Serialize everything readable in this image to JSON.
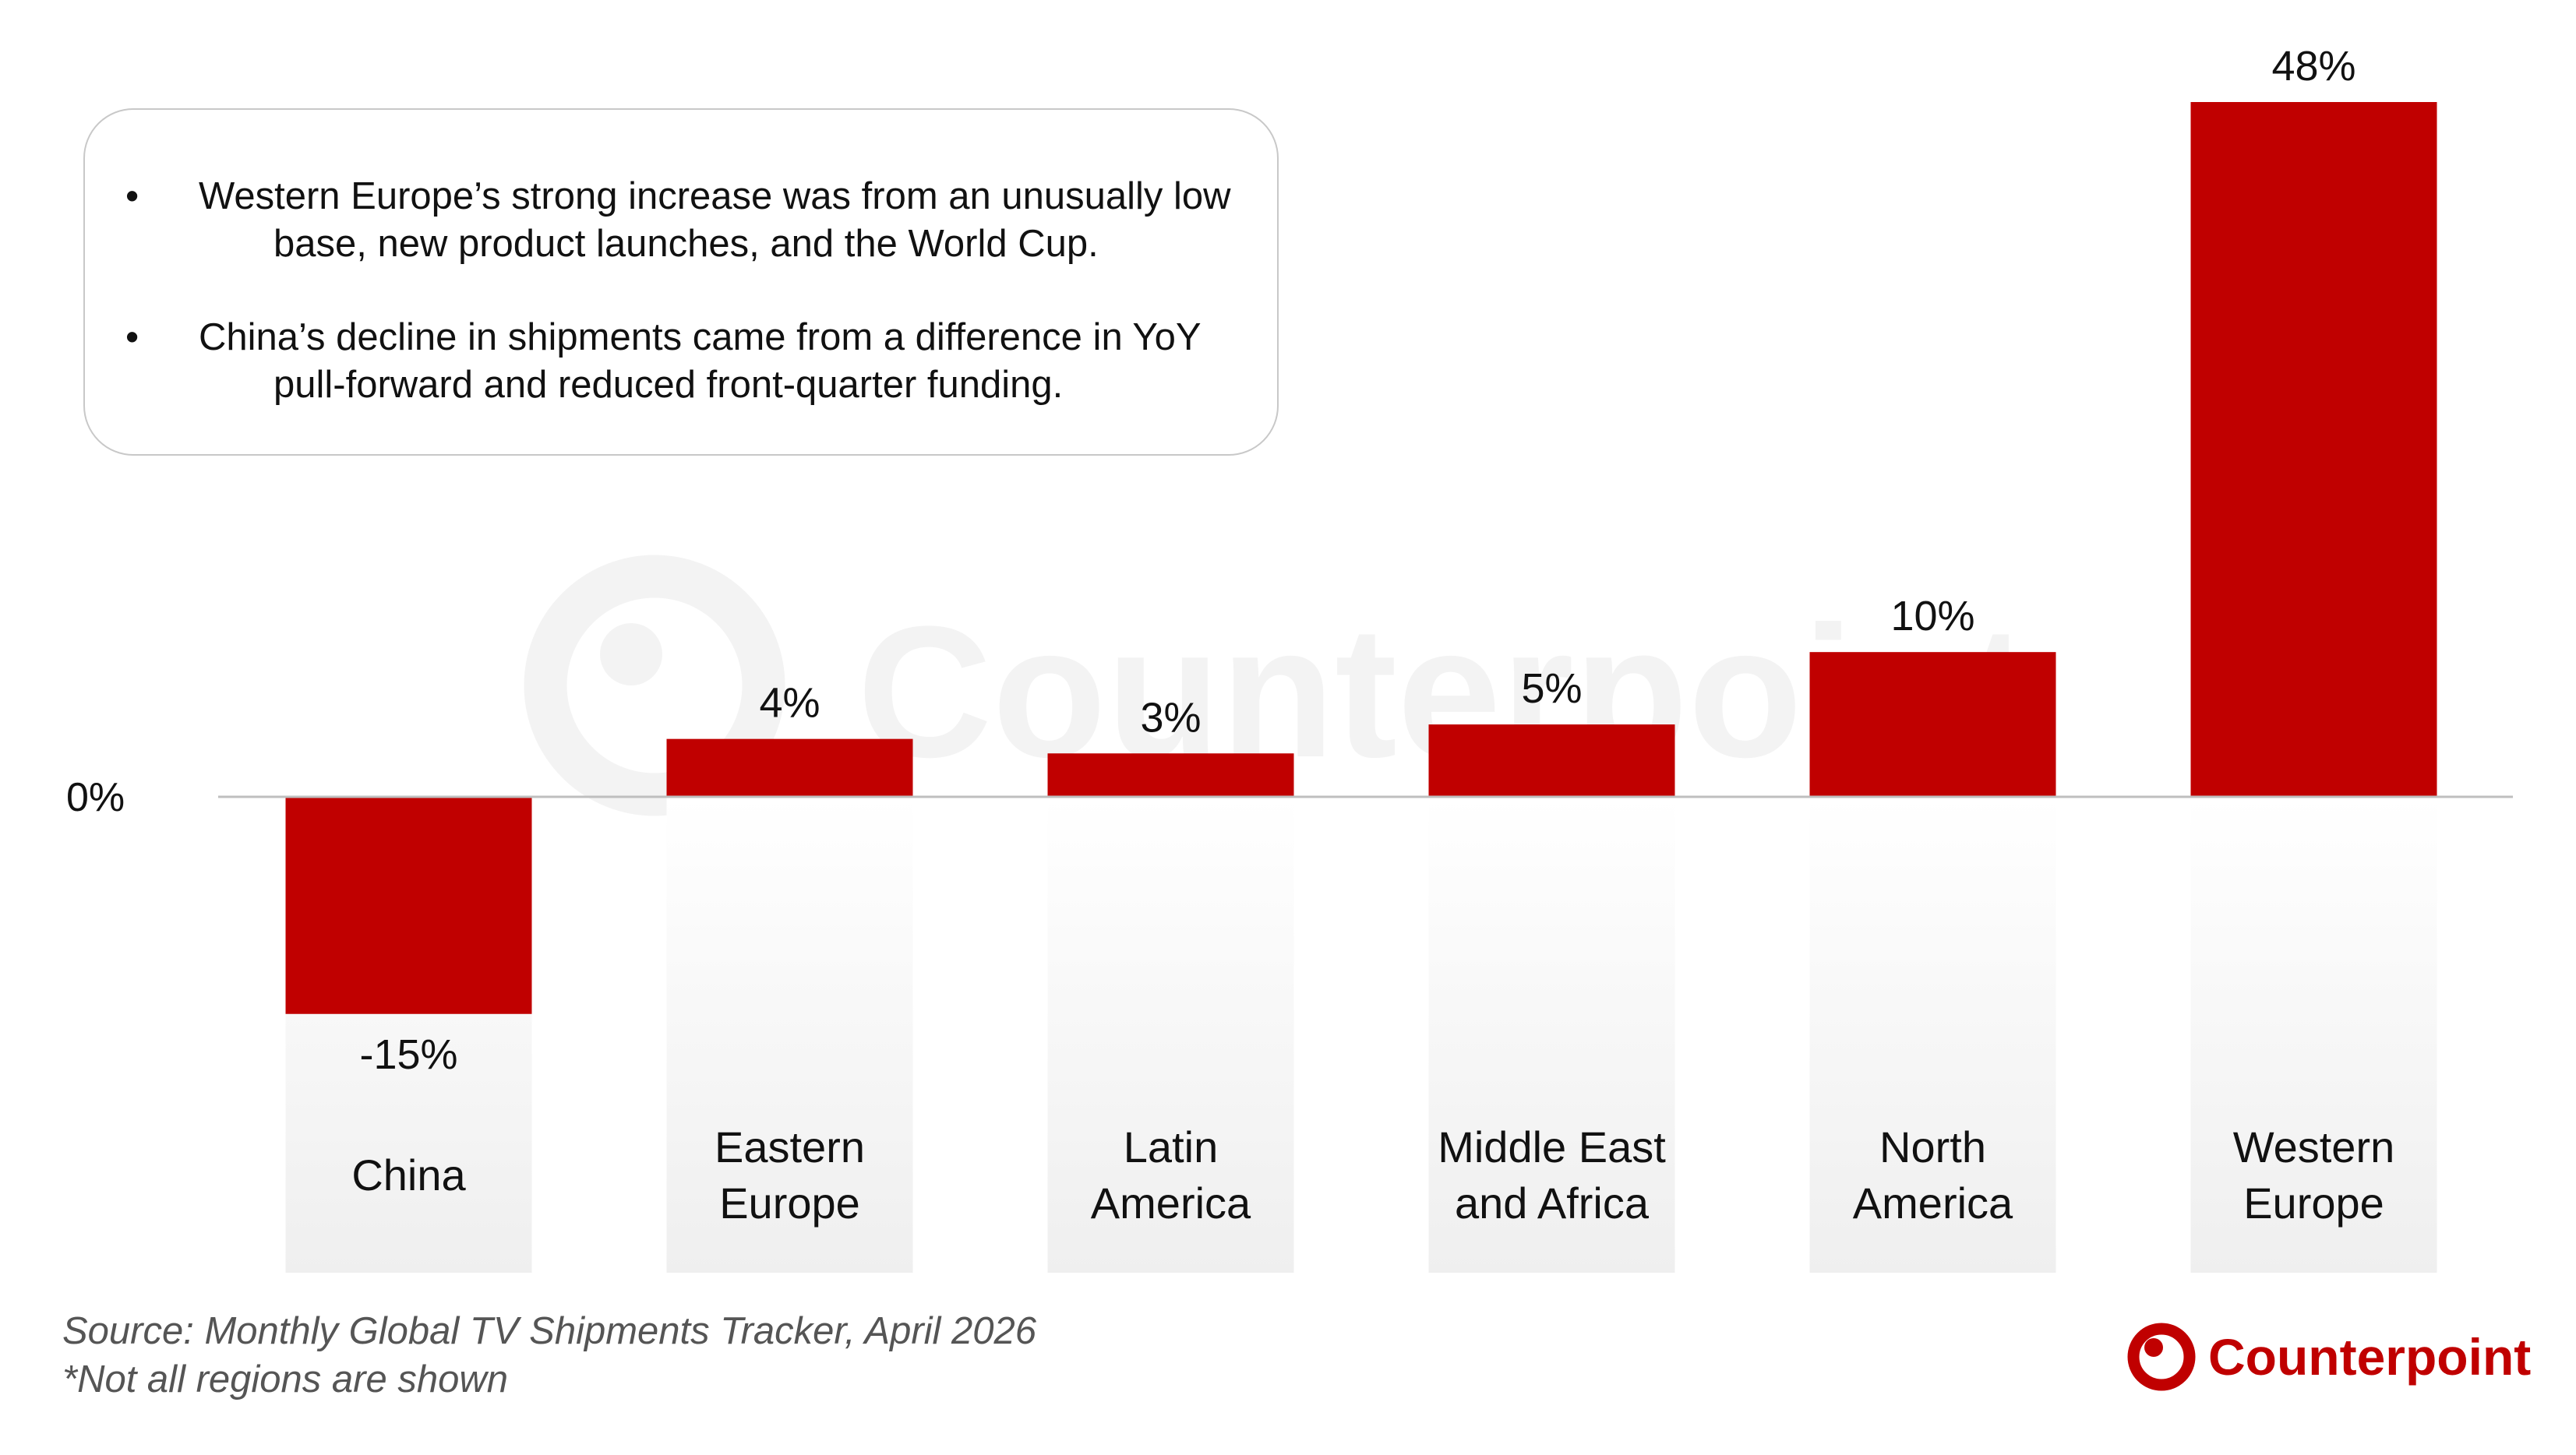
{
  "chart_data": {
    "type": "bar",
    "categories": [
      "China",
      "Eastern Europe",
      "Latin America",
      "Middle East and Africa",
      "North America",
      "Western Europe"
    ],
    "category_lines": [
      [
        "China"
      ],
      [
        "Eastern",
        "Europe"
      ],
      [
        "Latin",
        "America"
      ],
      [
        "Middle East",
        "and Africa"
      ],
      [
        "North",
        "America"
      ],
      [
        "Western",
        "Europe"
      ]
    ],
    "values": [
      -15,
      4,
      3,
      5,
      10,
      48
    ],
    "data_labels": [
      "-15%",
      "4%",
      "3%",
      "5%",
      "10%",
      "48%"
    ],
    "ylim": [
      -15,
      48
    ],
    "zero_label": "0%",
    "grid": false,
    "bar_color": "#c00000"
  },
  "notes": [
    {
      "bullet": "•",
      "text": "Western Europe’s strong increase was from an unusually low base, new product launches, and the World Cup."
    },
    {
      "bullet": "•",
      "text": "China’s decline in shipments came from a difference in YoY pull-forward and reduced front-quarter funding."
    }
  ],
  "source": {
    "line1": "Source: Monthly Global TV Shipments Tracker, April 2026",
    "line2": "*Not all regions are shown"
  },
  "brand": {
    "name": "Counterpoint",
    "color": "#c00000",
    "logo_icon": "counterpoint-logo-icon"
  }
}
